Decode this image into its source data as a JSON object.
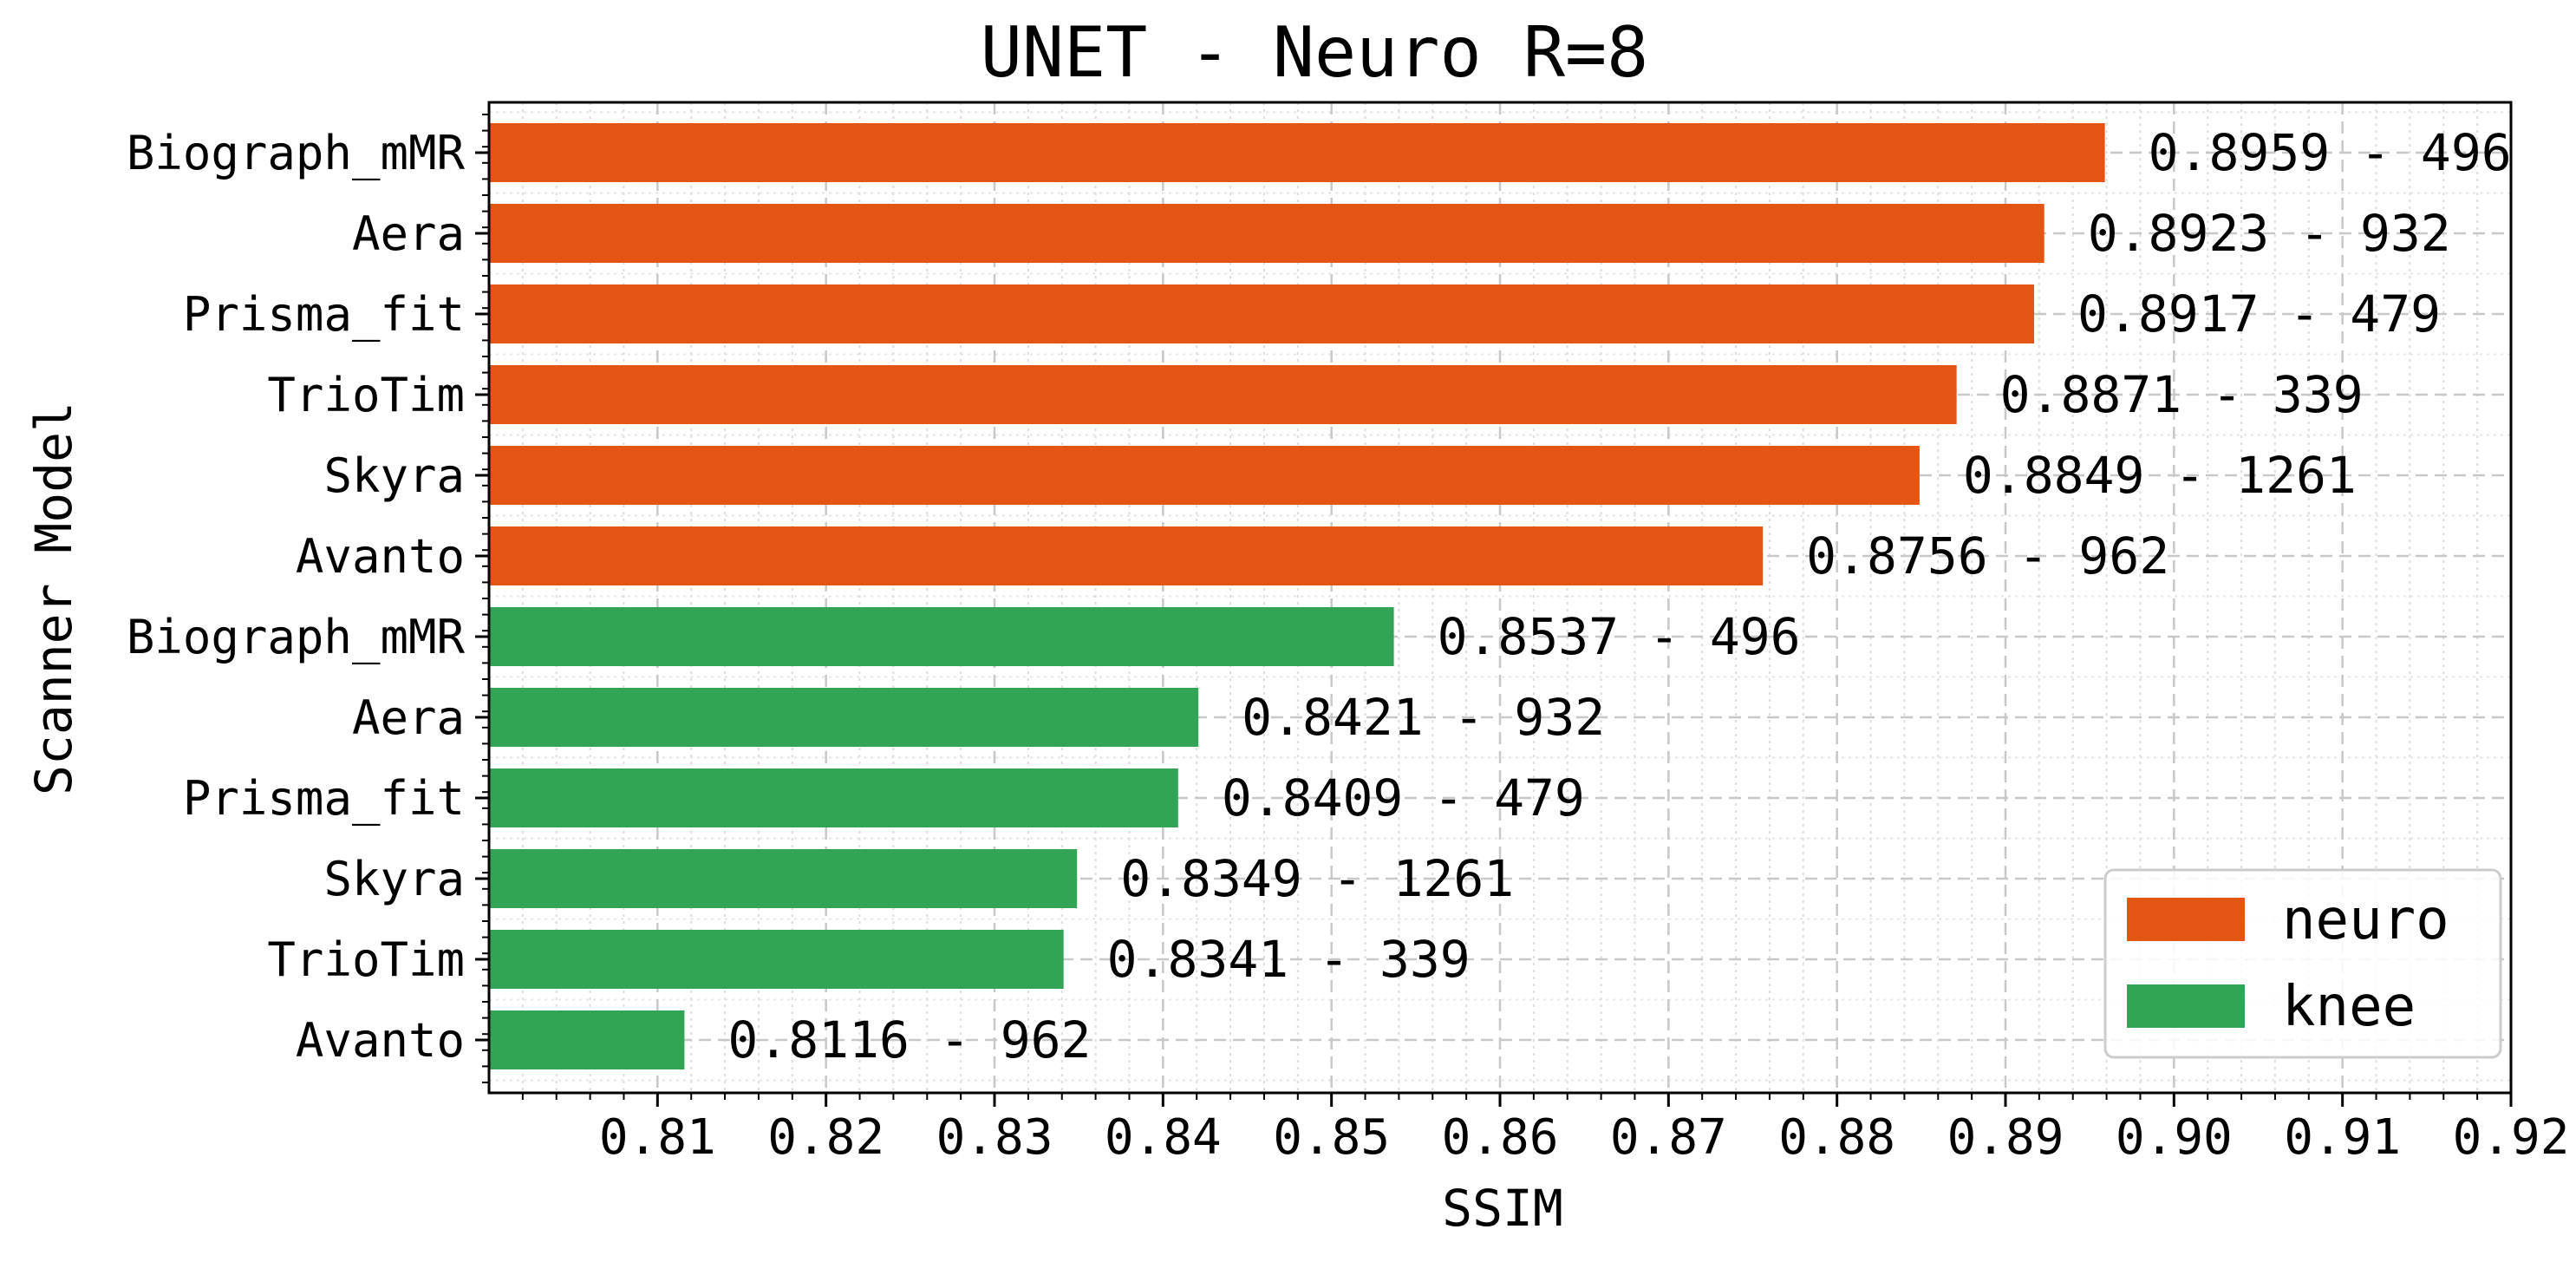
{
  "chart_data": {
    "type": "bar",
    "orientation": "horizontal",
    "title": "UNET - Neuro R=8",
    "xlabel": "SSIM",
    "ylabel": "Scanner Model",
    "xlim": [
      0.8,
      0.92
    ],
    "x_ticks": [
      "0.81",
      "0.82",
      "0.83",
      "0.84",
      "0.85",
      "0.86",
      "0.87",
      "0.88",
      "0.89",
      "0.90",
      "0.91",
      "0.92"
    ],
    "grid": true,
    "legend_position": "lower-right",
    "categories": [
      "Biograph_mMR",
      "Aera",
      "Prisma_fit",
      "TrioTim",
      "Skyra",
      "Avanto",
      "Biograph_mMR",
      "Aera",
      "Prisma_fit",
      "Skyra",
      "TrioTim",
      "Avanto"
    ],
    "values": [
      0.8959,
      0.8923,
      0.8917,
      0.8871,
      0.8849,
      0.8756,
      0.8537,
      0.8421,
      0.8409,
      0.8349,
      0.8341,
      0.8116
    ],
    "bar_labels": [
      "0.8959 - 496",
      "0.8923 - 932",
      "0.8917 - 479",
      "0.8871 - 339",
      "0.8849 - 1261",
      "0.8756 - 962",
      "0.8537 - 496",
      "0.8421 - 932",
      "0.8409 - 479",
      "0.8349 - 1261",
      "0.8341 - 339",
      "0.8116 - 962"
    ],
    "groups": [
      "neuro",
      "neuro",
      "neuro",
      "neuro",
      "neuro",
      "neuro",
      "knee",
      "knee",
      "knee",
      "knee",
      "knee",
      "knee"
    ],
    "legend": [
      {
        "name": "neuro",
        "color": "#e45412"
      },
      {
        "name": "knee",
        "color": "#32a456"
      }
    ]
  }
}
